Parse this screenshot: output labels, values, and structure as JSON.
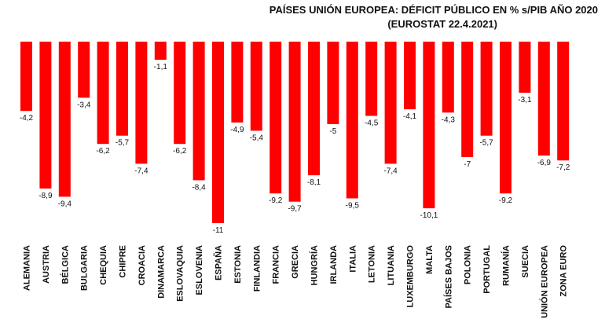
{
  "chart_data": {
    "type": "bar",
    "title": "PAÍSES UNIÓN EUROPEA: DÉFICIT PÚBLICO EN % s/PIB AÑO 2020",
    "subtitle": "(EUROSTAT 22.4.2021)",
    "categories": [
      "ALEMANIA",
      "AUSTRIA",
      "BÉLGICA",
      "BULGARIA",
      "CHEQUIA",
      "CHIPRE",
      "CROACIA",
      "DINAMARCA",
      "ESLOVAQUIA",
      "ESLOVENIA",
      "ESPAÑA",
      "ESTONIA",
      "FINLANDIA",
      "FRANCIA",
      "GRECIA",
      "HUNGRÍA",
      "IRLANDA",
      "ITALIA",
      "LETONIA",
      "LITUANIA",
      "LUXEMBURGO",
      "MALTA",
      "PAÍSES BAJOS",
      "POLONIA",
      "PORTUGAL",
      "RUMANÍA",
      "SUECIA",
      "UNIÓN EUROPEA",
      "ZONA EURO"
    ],
    "values": [
      -4.2,
      -8.9,
      -9.4,
      -3.4,
      -6.2,
      -5.7,
      -7.4,
      -1.1,
      -6.2,
      -8.4,
      -11,
      -4.9,
      -5.4,
      -9.2,
      -9.7,
      -8.1,
      -5,
      -9.5,
      -4.5,
      -7.4,
      -4.1,
      -10.1,
      -4.3,
      -7,
      -5.7,
      -9.2,
      -3.1,
      -6.9,
      -7.2
    ],
    "value_labels": [
      "-4,2",
      "-8,9",
      "-9,4",
      "-3,4",
      "-6,2",
      "-5,7",
      "-7,4",
      "-1,1",
      "-6,2",
      "-8,4",
      "-11",
      "-4,9",
      "-5,4",
      "-9,2",
      "-9,7",
      "-8,1",
      "-5",
      "-9,5",
      "-4,5",
      "-7,4",
      "-4,1",
      "-10,1",
      "-4,3",
      "-7",
      "-5,7",
      "-9,2",
      "-3,1",
      "-6,9",
      "-7,2"
    ],
    "ylim": [
      -11,
      0
    ],
    "grid": false,
    "legend": "none",
    "bar_color": "#ff0000"
  }
}
